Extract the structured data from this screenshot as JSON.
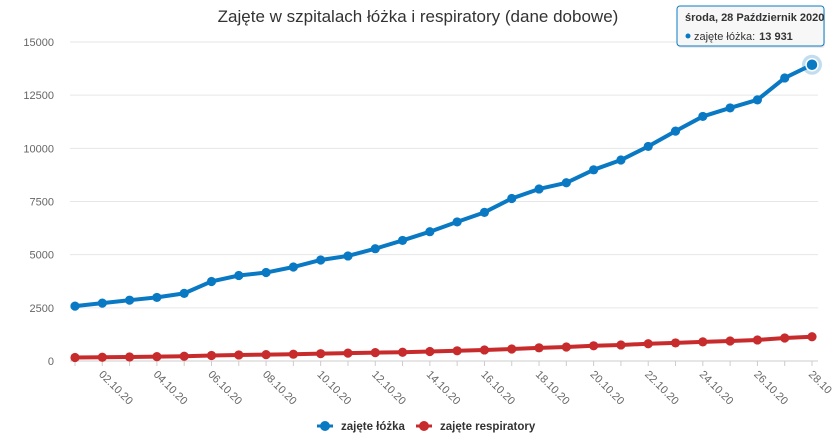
{
  "chart_data": {
    "type": "line",
    "title": "Zajęte w szpitalach łóżka i respiratory (dane dobowe)",
    "xlabel": "",
    "ylabel": "",
    "ylim": [
      0,
      15000
    ],
    "yticks": [
      0,
      2500,
      5000,
      7500,
      10000,
      12500,
      15000
    ],
    "ytick_labels": [
      "0",
      "2500",
      "5000",
      "7500",
      "10000",
      "12500",
      "15000"
    ],
    "x": [
      "01.10.20",
      "02.10.20",
      "03.10.20",
      "04.10.20",
      "05.10.20",
      "06.10.20",
      "07.10.20",
      "08.10.20",
      "09.10.20",
      "10.10.20",
      "11.10.20",
      "12.10.20",
      "13.10.20",
      "14.10.20",
      "15.10.20",
      "16.10.20",
      "17.10.20",
      "18.10.20",
      "19.10.20",
      "20.10.20",
      "21.10.20",
      "22.10.20",
      "23.10.20",
      "24.10.20",
      "25.10.20",
      "26.10.20",
      "27.10.20",
      "28.10.20"
    ],
    "xtick_labels": [
      "02.10.20",
      "04.10.20",
      "06.10.20",
      "08.10.20",
      "10.10.20",
      "12.10.20",
      "14.10.20",
      "16.10.20",
      "18.10.20",
      "20.10.20",
      "22.10.20",
      "24.10.20",
      "26.10.20",
      "28.10"
    ],
    "grid": true,
    "legend_position": "bottom-center",
    "series": [
      {
        "name": "zajęte łóżka",
        "color": "#0a79c4",
        "values": [
          2580,
          2720,
          2860,
          2990,
          3180,
          3740,
          4020,
          4160,
          4420,
          4750,
          4940,
          5280,
          5670,
          6080,
          6540,
          6990,
          7640,
          8090,
          8380,
          8990,
          9450,
          10090,
          10810,
          11500,
          11900,
          12280,
          13310,
          13931
        ]
      },
      {
        "name": "zajęte respiratory",
        "color": "#c82b2b",
        "values": [
          165,
          175,
          190,
          205,
          225,
          260,
          285,
          300,
          320,
          345,
          370,
          395,
          410,
          445,
          480,
          520,
          565,
          620,
          660,
          715,
          755,
          810,
          850,
          900,
          940,
          990,
          1080,
          1140
        ]
      }
    ],
    "tooltip": {
      "date": "środa, 28 Październik 2020",
      "series_label": "zajęte łóżka:",
      "value": "13 931",
      "index": 27
    }
  }
}
